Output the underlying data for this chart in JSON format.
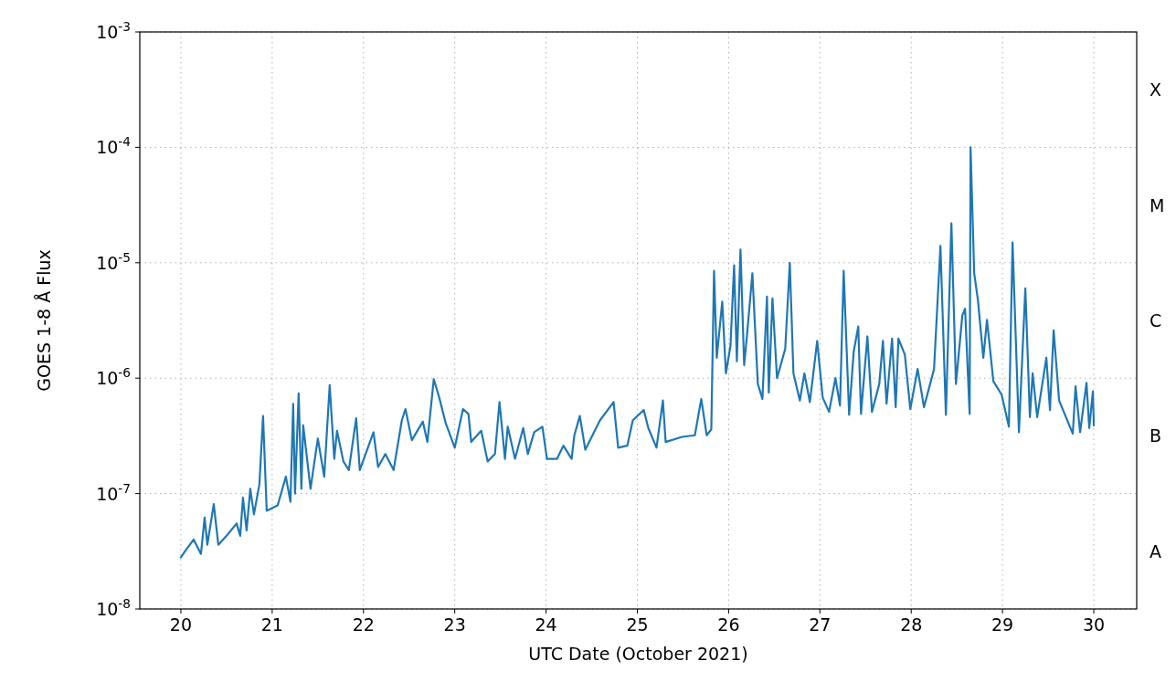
{
  "chart_data": {
    "type": "line",
    "xlabel": "UTC Date (October 2021)",
    "ylabel": "GOES 1-8 Å Flux",
    "log": "y",
    "grid": true,
    "line_style": "solid",
    "marker": "none",
    "xlim": [
      19.55,
      30.47
    ],
    "xticks": [
      20,
      21,
      22,
      23,
      24,
      25,
      26,
      27,
      28,
      29,
      30
    ],
    "ylim": [
      1e-08,
      0.001
    ],
    "yticks": [
      {
        "value": 1e-08,
        "label": "10$^{-8}$"
      },
      {
        "value": 1e-07,
        "label": "10$^{-7}$"
      },
      {
        "value": 1e-06,
        "label": "10$^{-6}$"
      },
      {
        "value": 1e-05,
        "label": "10$^{-5}$"
      },
      {
        "value": 0.0001,
        "label": "10$^{-4}$"
      },
      {
        "value": 0.001,
        "label": "10$^{-3}$"
      }
    ],
    "annotations": [
      "X",
      "M",
      "C",
      "B",
      "A"
    ],
    "series": [
      {
        "color": "#1f77b4",
        "x": [
          20.0,
          20.05,
          20.14,
          20.22,
          20.26,
          20.29,
          20.36,
          20.41,
          20.51,
          20.61,
          20.65,
          20.68,
          20.72,
          20.76,
          20.8,
          20.86,
          20.9,
          20.94,
          21.06,
          21.15,
          21.2,
          21.23,
          21.25,
          21.29,
          21.32,
          21.34,
          21.42,
          21.5,
          21.57,
          21.63,
          21.68,
          21.71,
          21.78,
          21.84,
          21.92,
          21.96,
          22.11,
          22.16,
          22.24,
          22.33,
          22.42,
          22.46,
          22.53,
          22.65,
          22.7,
          22.77,
          22.83,
          22.9,
          23.0,
          23.09,
          23.15,
          23.18,
          23.29,
          23.36,
          23.44,
          23.49,
          23.55,
          23.58,
          23.66,
          23.75,
          23.8,
          23.87,
          23.96,
          24.01,
          24.12,
          24.19,
          24.28,
          24.31,
          24.37,
          24.43,
          24.59,
          24.74,
          24.79,
          24.89,
          24.95,
          25.07,
          25.12,
          25.21,
          25.28,
          25.31,
          25.49,
          25.63,
          25.7,
          25.76,
          25.81,
          25.84,
          25.87,
          25.93,
          25.97,
          26.02,
          26.06,
          26.09,
          26.13,
          26.17,
          26.2,
          26.26,
          26.32,
          26.37,
          26.42,
          26.44,
          26.48,
          26.53,
          26.62,
          26.67,
          26.71,
          26.78,
          26.83,
          26.89,
          26.97,
          27.03,
          27.1,
          27.17,
          27.22,
          27.26,
          27.32,
          27.37,
          27.42,
          27.45,
          27.52,
          27.57,
          27.65,
          27.69,
          27.73,
          27.79,
          27.83,
          27.86,
          27.93,
          27.99,
          28.07,
          28.14,
          28.25,
          28.32,
          28.38,
          28.44,
          28.49,
          28.56,
          28.59,
          28.64,
          28.65,
          28.69,
          28.73,
          28.79,
          28.83,
          28.9,
          28.99,
          29.07,
          29.11,
          29.18,
          29.25,
          29.3,
          29.33,
          29.38,
          29.48,
          29.52,
          29.56,
          29.62,
          29.77,
          29.8,
          29.85,
          29.92,
          29.95,
          29.99,
          30.0
        ],
        "values": [
          2.8e-08,
          3.2e-08,
          4e-08,
          3e-08,
          6.2e-08,
          3.6e-08,
          8.1e-08,
          3.6e-08,
          4.4e-08,
          5.5e-08,
          4.3e-08,
          9.2e-08,
          4.8e-08,
          1.1e-07,
          6.6e-08,
          1.2e-07,
          4.7e-07,
          7.1e-08,
          7.9e-08,
          1.4e-07,
          8.5e-08,
          6e-07,
          1e-07,
          7.4e-07,
          1.1e-07,
          3.9e-07,
          1.1e-07,
          3e-07,
          1.4e-07,
          8.7e-07,
          2e-07,
          3.5e-07,
          1.9e-07,
          1.6e-07,
          4.5e-07,
          1.6e-07,
          3.4e-07,
          1.7e-07,
          2.2e-07,
          1.6e-07,
          4.3e-07,
          5.4e-07,
          2.9e-07,
          4.2e-07,
          2.8e-07,
          9.8e-07,
          6.8e-07,
          4.1e-07,
          2.5e-07,
          5.4e-07,
          4.9e-07,
          2.8e-07,
          3.5e-07,
          1.9e-07,
          2.2e-07,
          6.2e-07,
          2e-07,
          3.8e-07,
          2e-07,
          3.7e-07,
          2.2e-07,
          3.4e-07,
          3.8e-07,
          2e-07,
          2e-07,
          2.6e-07,
          2e-07,
          3.2e-07,
          4.7e-07,
          2.4e-07,
          4.3e-07,
          6.2e-07,
          2.5e-07,
          2.6e-07,
          4.3e-07,
          5.3e-07,
          3.7e-07,
          2.5e-07,
          6.4e-07,
          2.8e-07,
          3.1e-07,
          3.2e-07,
          6.6e-07,
          3.2e-07,
          3.6e-07,
          8.5e-06,
          1.5e-06,
          4.6e-06,
          1.1e-06,
          1.9e-06,
          9.5e-06,
          1.4e-06,
          1.3e-05,
          1.3e-06,
          2.3e-06,
          8.1e-06,
          8.9e-07,
          6.6e-07,
          5.1e-06,
          7.5e-07,
          4.9e-06,
          1e-06,
          1.8e-06,
          1e-05,
          1.1e-06,
          6.4e-07,
          1.1e-06,
          6.2e-07,
          2.1e-06,
          6.8e-07,
          5.1e-07,
          1e-06,
          5.8e-07,
          8.5e-06,
          4.8e-07,
          1.7e-06,
          2.8e-06,
          4.9e-07,
          2.3e-06,
          5.1e-07,
          8.9e-07,
          2.1e-06,
          6e-07,
          2.2e-06,
          5.6e-07,
          2.2e-06,
          1.6e-06,
          5.4e-07,
          1.2e-06,
          5.6e-07,
          1.2e-06,
          1.4e-05,
          4.8e-07,
          2.2e-05,
          8.9e-07,
          3.5e-06,
          4e-06,
          4.9e-07,
          0.0001,
          8.1e-06,
          4.8e-06,
          1.5e-06,
          3.2e-06,
          9.4e-07,
          7.2e-07,
          3.8e-07,
          1.5e-05,
          3.4e-07,
          6e-06,
          4.6e-07,
          1.1e-06,
          4.6e-07,
          1.5e-06,
          5.3e-07,
          2.6e-06,
          6.4e-07,
          3.3e-07,
          8.5e-07,
          3.4e-07,
          9.1e-07,
          3.7e-07,
          7.7e-07,
          3.9e-07
        ]
      }
    ]
  }
}
